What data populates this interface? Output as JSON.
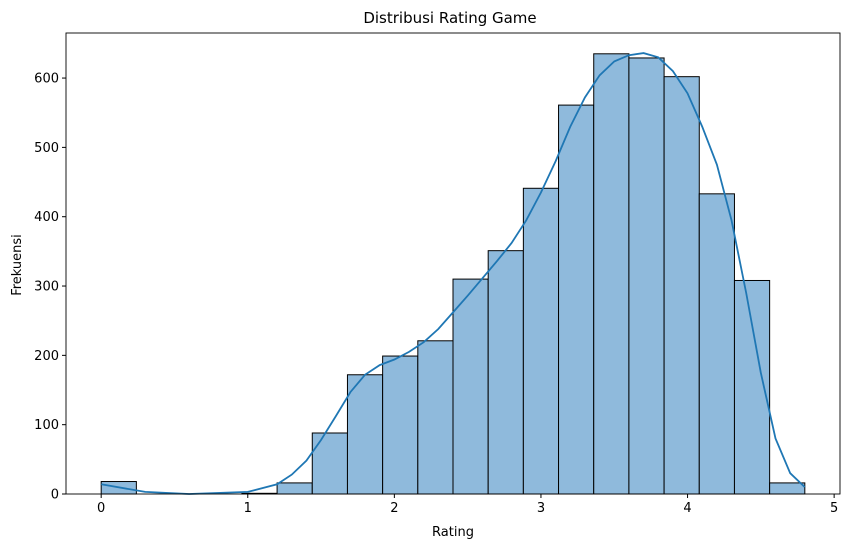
{
  "chart_data": {
    "type": "bar",
    "title": "Distribusi Rating Game",
    "xlabel": "Rating",
    "ylabel": "Frekuensi",
    "xlim": [
      -0.24,
      5.04
    ],
    "ylim": [
      0,
      665
    ],
    "xticks": [
      0,
      1,
      2,
      3,
      4,
      5
    ],
    "yticks": [
      0,
      100,
      200,
      300,
      400,
      500,
      600
    ],
    "grid": false,
    "bins": [
      {
        "x0": 0.0,
        "x1": 0.24,
        "value": 18
      },
      {
        "x0": 0.24,
        "x1": 0.48,
        "value": 0
      },
      {
        "x0": 0.48,
        "x1": 0.72,
        "value": 0
      },
      {
        "x0": 0.72,
        "x1": 0.96,
        "value": 0
      },
      {
        "x0": 0.96,
        "x1": 1.2,
        "value": 1
      },
      {
        "x0": 1.2,
        "x1": 1.44,
        "value": 16
      },
      {
        "x0": 1.44,
        "x1": 1.68,
        "value": 88
      },
      {
        "x0": 1.68,
        "x1": 1.92,
        "value": 172
      },
      {
        "x0": 1.92,
        "x1": 2.16,
        "value": 199
      },
      {
        "x0": 2.16,
        "x1": 2.4,
        "value": 221
      },
      {
        "x0": 2.4,
        "x1": 2.64,
        "value": 310
      },
      {
        "x0": 2.64,
        "x1": 2.88,
        "value": 351
      },
      {
        "x0": 2.88,
        "x1": 3.12,
        "value": 441
      },
      {
        "x0": 3.12,
        "x1": 3.36,
        "value": 561
      },
      {
        "x0": 3.36,
        "x1": 3.6,
        "value": 635
      },
      {
        "x0": 3.6,
        "x1": 3.84,
        "value": 629
      },
      {
        "x0": 3.84,
        "x1": 4.08,
        "value": 602
      },
      {
        "x0": 4.08,
        "x1": 4.32,
        "value": 433
      },
      {
        "x0": 4.32,
        "x1": 4.56,
        "value": 308
      },
      {
        "x0": 4.56,
        "x1": 4.8,
        "value": 16
      }
    ],
    "kde": {
      "x": [
        0,
        0.3,
        0.6,
        1.0,
        1.2,
        1.3,
        1.4,
        1.5,
        1.6,
        1.7,
        1.8,
        1.9,
        2.0,
        2.1,
        2.2,
        2.3,
        2.4,
        2.5,
        2.6,
        2.7,
        2.8,
        2.9,
        3.0,
        3.1,
        3.2,
        3.3,
        3.4,
        3.5,
        3.6,
        3.7,
        3.8,
        3.9,
        4.0,
        4.1,
        4.2,
        4.3,
        4.4,
        4.5,
        4.6,
        4.7,
        4.8
      ],
      "y": [
        14,
        3,
        0,
        3,
        14,
        28,
        48,
        78,
        112,
        147,
        172,
        186,
        194,
        205,
        219,
        238,
        262,
        286,
        311,
        336,
        362,
        395,
        435,
        480,
        530,
        572,
        604,
        624,
        633,
        636,
        630,
        610,
        578,
        530,
        475,
        395,
        290,
        175,
        80,
        30,
        10
      ]
    },
    "colors": {
      "bar_fill": "#8fbadc",
      "bar_edge": "#000000",
      "line": "#1f77b4"
    }
  }
}
